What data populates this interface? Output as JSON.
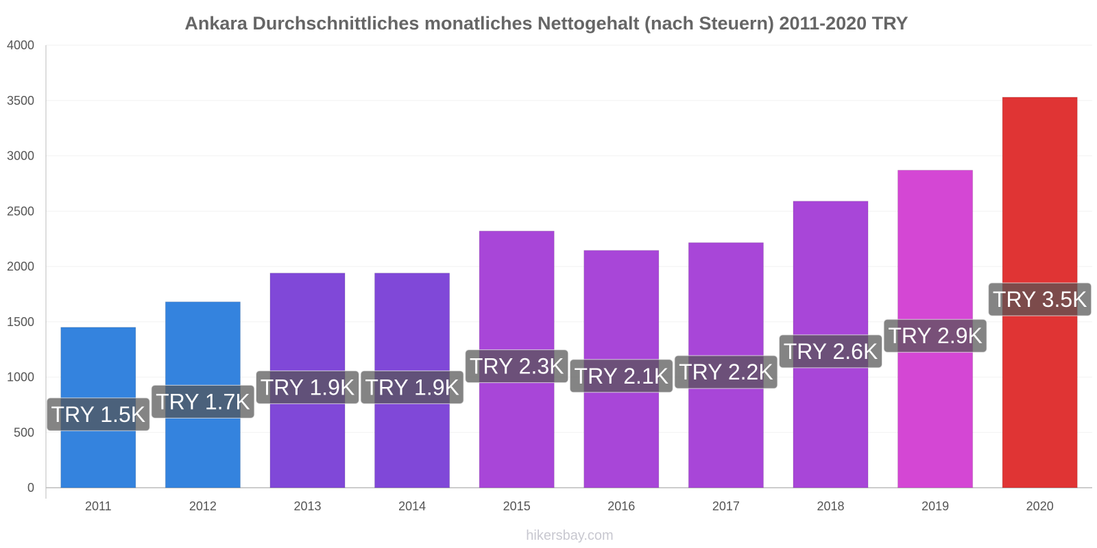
{
  "chart_data": {
    "type": "bar",
    "title": "Ankara Durchschnittliches monatliches Nettogehalt (nach Steuern) 2011-2020 TRY",
    "xlabel": "",
    "ylabel": "",
    "ylim": [
      0,
      4000
    ],
    "yticks": [
      "0",
      "500",
      "1000",
      "1500",
      "2000",
      "2500",
      "3000",
      "3500",
      "4000"
    ],
    "categories": [
      "2011",
      "2012",
      "2013",
      "2014",
      "2015",
      "2016",
      "2017",
      "2018",
      "2019",
      "2020"
    ],
    "values": [
      1450,
      1680,
      1940,
      1940,
      2320,
      2145,
      2215,
      2590,
      2870,
      3530
    ],
    "data_labels": [
      "TRY 1.5K",
      "TRY 1.7K",
      "TRY 1.9K",
      "TRY 1.9K",
      "TRY 2.3K",
      "TRY 2.1K",
      "TRY 2.2K",
      "TRY 2.6K",
      "TRY 2.9K",
      "TRY 3.5K"
    ],
    "bar_colors": [
      "#3483de",
      "#3483de",
      "#8048d8",
      "#8048d8",
      "#a846d8",
      "#a846d8",
      "#a846d8",
      "#a846d8",
      "#d447d4",
      "#e03434"
    ],
    "label_bg_color": "#555555",
    "grid": true,
    "legend": "none"
  },
  "watermark": "hikersbay.com"
}
